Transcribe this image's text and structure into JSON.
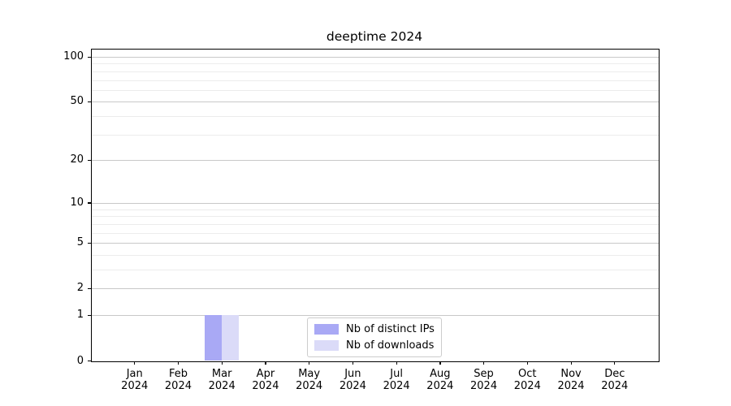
{
  "chart_data": {
    "type": "bar",
    "title": "deeptime 2024",
    "categories": [
      "Jan 2024",
      "Feb 2024",
      "Mar 2024",
      "Apr 2024",
      "May 2024",
      "Jun 2024",
      "Jul 2024",
      "Aug 2024",
      "Sep 2024",
      "Oct 2024",
      "Nov 2024",
      "Dec 2024"
    ],
    "series": [
      {
        "name": "Nb of distinct IPs",
        "color": "#a9a9f5",
        "values": [
          0,
          0,
          1,
          0,
          0,
          0,
          0,
          0,
          0,
          0,
          0,
          0
        ]
      },
      {
        "name": "Nb of downloads",
        "color": "#dbdbf8",
        "values": [
          0,
          0,
          1,
          0,
          0,
          0,
          0,
          0,
          0,
          0,
          0,
          0
        ]
      }
    ],
    "xlabel": "",
    "ylabel": "",
    "y_scale": "log10(1+v)",
    "y_major_ticks": [
      0,
      1,
      2,
      5,
      10,
      20,
      50,
      100
    ],
    "y_minor_ticks": [
      3,
      4,
      6,
      7,
      8,
      9,
      30,
      40,
      60,
      70,
      80,
      90
    ],
    "ylim": [
      0,
      114
    ],
    "x_slots": 13,
    "grid": "horizontal",
    "legend_position": "inside-bottom-center",
    "colors": {
      "axis": "#000000",
      "major_grid": "#c8c8c8",
      "minor_grid": "#ececec",
      "background": "#ffffff"
    }
  }
}
